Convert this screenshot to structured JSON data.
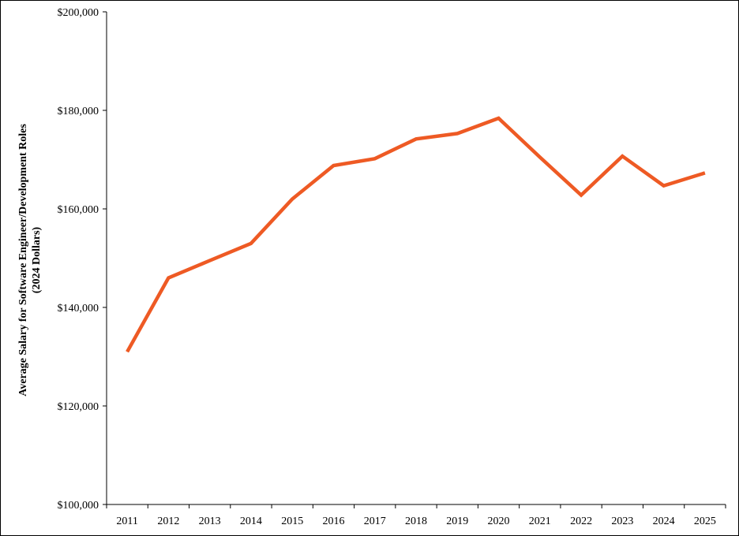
{
  "chart_data": {
    "type": "line",
    "title": "",
    "xlabel": "",
    "ylabel_line1": "Average Salary for Software Engineer/Development Roles",
    "ylabel_line2": "(2024 Dollars)",
    "x": [
      "2011",
      "2012",
      "2013",
      "2014",
      "2015",
      "2016",
      "2017",
      "2018",
      "2019",
      "2020",
      "2021",
      "2022",
      "2023",
      "2024",
      "2025"
    ],
    "y_tick_labels": [
      "$100,000",
      "$120,000",
      "$140,000",
      "$160,000",
      "$180,000",
      "$200,000"
    ],
    "y_tick_values": [
      100000,
      120000,
      140000,
      160000,
      180000,
      200000
    ],
    "ylim": [
      100000,
      200000
    ],
    "grid": false,
    "legend": "none",
    "series": [
      {
        "color": "#EE5A24",
        "values": [
          131000,
          146000,
          149500,
          153000,
          162000,
          168800,
          170200,
          174200,
          175300,
          178400,
          170500,
          162800,
          170700,
          164700,
          167300
        ]
      }
    ]
  }
}
